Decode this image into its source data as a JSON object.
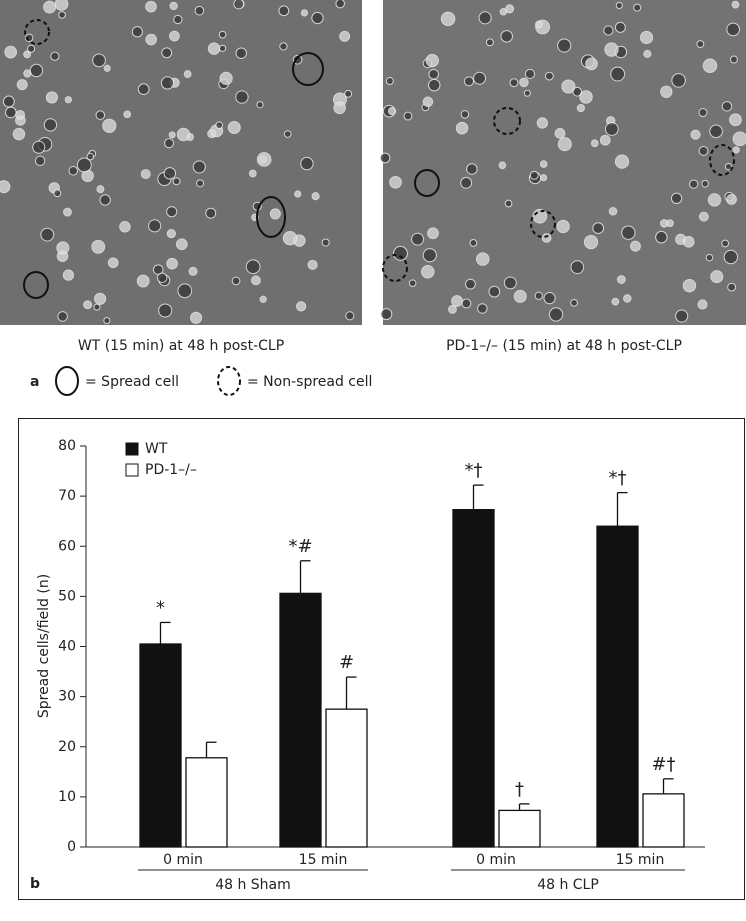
{
  "images": {
    "left_caption": "WT (15 min) at 48 h post-CLP",
    "right_caption": "PD-1–/– (15 min) at 48 h post-CLP"
  },
  "legend_a": {
    "panel": "a",
    "spread": "= Spread cell",
    "non_spread": "= Non-spread cell"
  },
  "chart_data": {
    "type": "bar",
    "panel": "b",
    "ylabel": "Spread cells/field (n)",
    "categories": [
      "0 min",
      "15 min",
      "0 min",
      "15 min"
    ],
    "groups": [
      {
        "label": "48 h Sham",
        "span": 2
      },
      {
        "label": "48 h CLP",
        "span": 2
      }
    ],
    "series": [
      {
        "name": "WT",
        "color": "#111111",
        "values": [
          40.5,
          50.6,
          67.3,
          64.0
        ],
        "errors": [
          4.3,
          6.5,
          4.9,
          6.7
        ],
        "significance": [
          "*",
          "*#",
          "*†",
          "*†"
        ]
      },
      {
        "name": "PD-1–/–",
        "color": "#ffffff",
        "values": [
          17.8,
          27.5,
          7.3,
          10.6
        ],
        "errors": [
          3.1,
          6.4,
          1.3,
          3.0
        ],
        "significance": [
          null,
          "#",
          "†",
          "#†"
        ]
      }
    ],
    "ylim": [
      0,
      80
    ],
    "yticks": [
      0,
      10,
      20,
      30,
      40,
      50,
      60,
      70,
      80
    ]
  }
}
